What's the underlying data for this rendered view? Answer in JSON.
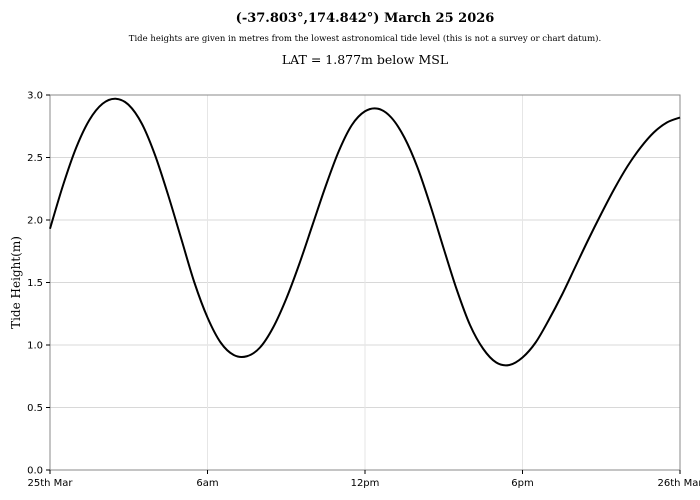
{
  "header": {
    "title": "(-37.803°,174.842°) March 25 2026",
    "subtitle": "Tide heights are given in metres from the lowest astronomical tide level (this is not a survey or chart datum).",
    "lat_note": "LAT = 1.877m below MSL"
  },
  "chart_data": {
    "type": "line",
    "title": "(-37.803°,174.842°) March 25 2026",
    "xlabel": "",
    "ylabel": "Tide Height(m)",
    "xlim": [
      0,
      24
    ],
    "ylim": [
      0,
      3.0
    ],
    "x_ticks": [
      {
        "x": 0,
        "label": "25th Mar"
      },
      {
        "x": 6,
        "label": "6am"
      },
      {
        "x": 12,
        "label": "12pm"
      },
      {
        "x": 18,
        "label": "6pm"
      },
      {
        "x": 24,
        "label": "26th Mar"
      }
    ],
    "y_ticks": [
      {
        "y": 0.0,
        "label": "0.0"
      },
      {
        "y": 0.5,
        "label": "0.5"
      },
      {
        "y": 1.0,
        "label": "1.0"
      },
      {
        "y": 1.5,
        "label": "1.5"
      },
      {
        "y": 2.0,
        "label": "2.0"
      },
      {
        "y": 2.5,
        "label": "2.5"
      },
      {
        "y": 3.0,
        "label": "3.0"
      }
    ],
    "grid": true,
    "line_color": "#000000",
    "series": [
      {
        "x": [
          0,
          0.5,
          1.0,
          1.5,
          2.0,
          2.5,
          3.0,
          3.5,
          4.0,
          4.5,
          5.0,
          5.5,
          6.0,
          6.5,
          7.0,
          7.5,
          8.0,
          8.5,
          9.0,
          9.5,
          10.0,
          10.5,
          11.0,
          11.5,
          12.0,
          12.5,
          13.0,
          13.5,
          14.0,
          14.5,
          15.0,
          15.5,
          16.0,
          16.5,
          17.0,
          17.5,
          18.0,
          18.5,
          19.0,
          19.5,
          20.0,
          20.5,
          21.0,
          21.5,
          22.0,
          22.5,
          23.0,
          23.5,
          24.0
        ],
        "y": [
          1.93,
          2.28,
          2.58,
          2.8,
          2.93,
          2.97,
          2.92,
          2.77,
          2.52,
          2.2,
          1.85,
          1.5,
          1.22,
          1.02,
          0.92,
          0.91,
          0.98,
          1.14,
          1.37,
          1.65,
          1.96,
          2.27,
          2.55,
          2.76,
          2.87,
          2.89,
          2.82,
          2.66,
          2.42,
          2.11,
          1.77,
          1.44,
          1.16,
          0.97,
          0.86,
          0.84,
          0.9,
          1.02,
          1.2,
          1.4,
          1.62,
          1.84,
          2.05,
          2.25,
          2.43,
          2.58,
          2.7,
          2.78,
          2.82
        ]
      }
    ]
  }
}
